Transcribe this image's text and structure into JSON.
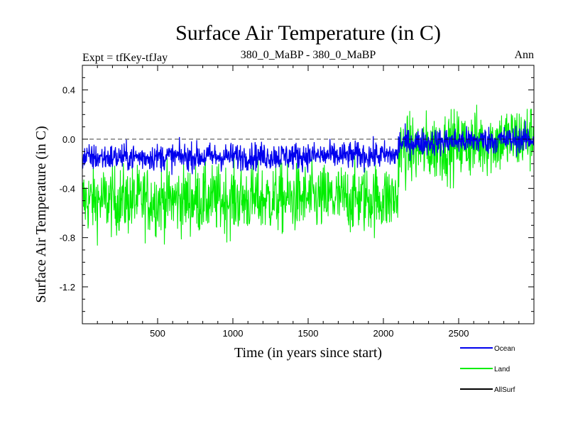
{
  "chart_data": {
    "type": "line",
    "title": "Surface Air Temperature (in C)",
    "subtitle_left": "Expt = tfKey-tfJay",
    "subtitle_center": "380_0_MaBP - 380_0_MaBP",
    "subtitle_right": "Ann",
    "xlabel": "Time (in years since start)",
    "ylabel": "Surface Air Temperature (in C)",
    "xlim": [
      0,
      3000
    ],
    "ylim": [
      -1.5,
      0.6
    ],
    "xticks": [
      500,
      1000,
      1500,
      2000,
      2500
    ],
    "xtick_labels": [
      "500",
      "1000",
      "1500",
      "2000",
      "2500"
    ],
    "yticks": [
      -1.2,
      -0.8,
      -0.4,
      0.0,
      0.4
    ],
    "ytick_labels": [
      "-1.2",
      "-0.8",
      "-0.4",
      "0.0",
      "0.4"
    ],
    "reference_line": 0.0,
    "grid": false,
    "legend_position": "bottom-right, outside plot",
    "series": [
      {
        "name": "Land",
        "color": "#00ee00",
        "x": [
          0,
          2100,
          2100,
          3000
        ],
        "y": [
          -0.5,
          -0.48,
          -0.1,
          0.02
        ],
        "note_hidden": true
      },
      {
        "name": "Ocean",
        "color": "#0000ee",
        "x": [
          0,
          2100,
          2100,
          3000
        ],
        "y": [
          -0.15,
          -0.13,
          -0.03,
          0.0
        ]
      },
      {
        "name": "AllSurf",
        "color": "#000000",
        "x": [],
        "y": []
      }
    ]
  }
}
